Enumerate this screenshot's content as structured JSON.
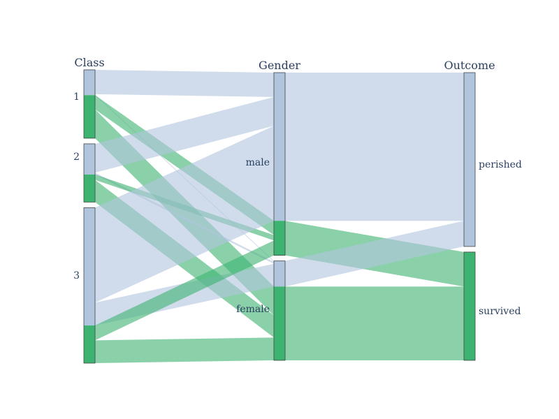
{
  "chart_data": {
    "type": "parallel_categories",
    "title": "",
    "colors": {
      "perished": "#b0c4de",
      "survived": "#3cb371"
    },
    "dimensions": [
      {
        "label": "Class",
        "categories": [
          "1",
          "2",
          "3"
        ]
      },
      {
        "label": "Gender",
        "categories": [
          "male",
          "female"
        ]
      },
      {
        "label": "Outcome",
        "categories": [
          "perished",
          "survived"
        ]
      }
    ],
    "flows": [
      {
        "class": "1",
        "gender": "male",
        "outcome": "perished",
        "count": 77
      },
      {
        "class": "1",
        "gender": "female",
        "outcome": "perished",
        "count": 3
      },
      {
        "class": "1",
        "gender": "male",
        "outcome": "survived",
        "count": 45
      },
      {
        "class": "1",
        "gender": "female",
        "outcome": "survived",
        "count": 91
      },
      {
        "class": "2",
        "gender": "male",
        "outcome": "perished",
        "count": 91
      },
      {
        "class": "2",
        "gender": "female",
        "outcome": "perished",
        "count": 6
      },
      {
        "class": "2",
        "gender": "male",
        "outcome": "survived",
        "count": 17
      },
      {
        "class": "2",
        "gender": "female",
        "outcome": "survived",
        "count": 70
      },
      {
        "class": "3",
        "gender": "male",
        "outcome": "perished",
        "count": 300
      },
      {
        "class": "3",
        "gender": "female",
        "outcome": "perished",
        "count": 72
      },
      {
        "class": "3",
        "gender": "male",
        "outcome": "survived",
        "count": 47
      },
      {
        "class": "3",
        "gender": "female",
        "outcome": "survived",
        "count": 72
      }
    ]
  }
}
